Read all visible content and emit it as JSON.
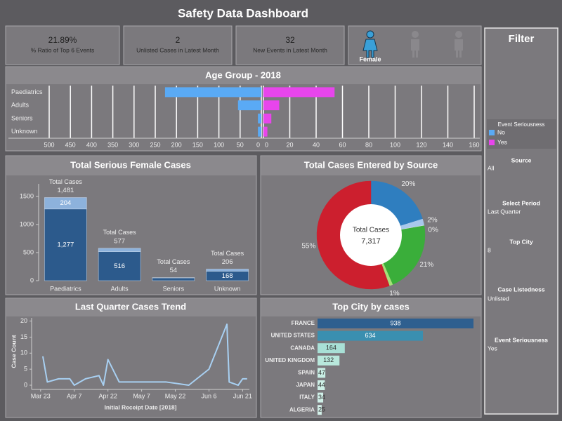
{
  "title": "Safety Data Dashboard",
  "kpis": [
    {
      "value": "21.89%",
      "label": "% Ratio of Top 6 Events"
    },
    {
      "value": "2",
      "label": "Unlisted Cases in Latest Month"
    },
    {
      "value": "32",
      "label": "New Events in Latest Month"
    }
  ],
  "gender": {
    "label": "Female"
  },
  "filter": {
    "title": "Filter",
    "items": [
      {
        "label": "Source",
        "value": "All"
      },
      {
        "label": "Select Period",
        "value": "Last Quarter"
      },
      {
        "label": "Top City",
        "value": "8"
      },
      {
        "label": "Case Listedness",
        "value": "Unlisted"
      },
      {
        "label": "Event Seriousness",
        "value": "Yes"
      }
    ]
  },
  "chart_data": [
    {
      "type": "butterfly",
      "title": "Age Group - 2018",
      "categories": [
        "Paediatrics",
        "Adults",
        "Seniors",
        "Unknown"
      ],
      "legend_title": "Event Seriousness",
      "series": [
        {
          "name": "No",
          "color": "#5aaaf5",
          "values": [
            227,
            55,
            8,
            8
          ]
        },
        {
          "name": "Yes",
          "color": "#e845ec",
          "values": [
            54,
            12,
            6,
            3
          ],
          "axis": "x2"
        }
      ],
      "xlim": [
        0,
        500
      ],
      "xticks": [
        500,
        450,
        400,
        350,
        300,
        250,
        200,
        150,
        100,
        50,
        0
      ],
      "x2lim": [
        0,
        160
      ],
      "x2ticks": [
        0,
        20,
        40,
        60,
        80,
        100,
        120,
        140,
        160
      ],
      "grid": true
    },
    {
      "type": "stacked-bar",
      "title": "Total Serious Female Cases",
      "categories": [
        "Paediatrics",
        "Adults",
        "Seniors",
        "Unknown"
      ],
      "series": [
        {
          "color": "#2c5a8c",
          "values": [
            1277,
            516,
            50,
            168
          ],
          "value_labels": [
            "1,277",
            "516",
            null,
            "168"
          ]
        },
        {
          "color": "#8db2dc",
          "values": [
            204,
            61,
            4,
            38
          ],
          "value_labels": [
            "204",
            null,
            null,
            null
          ]
        }
      ],
      "total_title": "Total Cases",
      "totals": [
        1481,
        577,
        54,
        206
      ],
      "totals_labels": [
        "1,481",
        "577",
        "54",
        "206"
      ],
      "ylim": [
        0,
        1600
      ],
      "yticks": [
        0,
        500,
        1000,
        1500
      ]
    },
    {
      "type": "donut",
      "title": "Total Cases Entered by Source",
      "values": [
        20,
        2,
        0,
        21,
        1,
        55
      ],
      "value_labels": [
        "20%",
        "2%",
        "0%",
        "21%",
        "1%",
        "55%"
      ],
      "colors": [
        "#2f7ebf",
        "#a8c8ec",
        "#e6e6e6",
        "#3aae3a",
        "#a6e07a",
        "#cc1f2e"
      ],
      "center_title": "Total Cases",
      "center_label": "7,317"
    },
    {
      "type": "line",
      "title": "Last Quarter Cases Trend",
      "xlabel": "Initial Receipt Date [2018]",
      "ylabel": "Case Count",
      "color": "#a8d0f2",
      "x": [
        "2018-03-24",
        "2018-03-26",
        "2018-03-31",
        "2018-04-05",
        "2018-04-07",
        "2018-04-12",
        "2018-04-18",
        "2018-04-20",
        "2018-04-22",
        "2018-04-27",
        "2018-05-07",
        "2018-05-18",
        "2018-05-28",
        "2018-06-06",
        "2018-06-14",
        "2018-06-15",
        "2018-06-19",
        "2018-06-21",
        "2018-06-23"
      ],
      "values": [
        9,
        1,
        2,
        2,
        0,
        2,
        3,
        0,
        8,
        1,
        1,
        1,
        0,
        5,
        19,
        1,
        0,
        2,
        2
      ],
      "xlim": [
        "2018-03-19",
        "2018-06-24"
      ],
      "xticks": [
        {
          "value": "2018-03-23",
          "label": "Mar 23"
        },
        {
          "value": "2018-04-07",
          "label": "Apr 7"
        },
        {
          "value": "2018-04-22",
          "label": "Apr 22"
        },
        {
          "value": "2018-05-07",
          "label": "May 7"
        },
        {
          "value": "2018-05-22",
          "label": "May 22"
        },
        {
          "value": "2018-06-06",
          "label": "Jun 6"
        },
        {
          "value": "2018-06-21",
          "label": "Jun 21"
        }
      ],
      "ylim": [
        0,
        21
      ],
      "yticks": [
        0,
        5,
        10,
        15,
        20
      ]
    },
    {
      "type": "hbar",
      "title": "Top City by cases",
      "categories": [
        "FRANCE",
        "UNITED STATES",
        "CANADA",
        "UNITED KINGDOM",
        "SPAIN",
        "JAPAN",
        "ITALY",
        "ALGERIA"
      ],
      "values": [
        938,
        634,
        164,
        132,
        47,
        44,
        34,
        25
      ],
      "colors": [
        "#2e5f8f",
        "#3a8fb0",
        "#a8e0d6",
        "#b8e8dc",
        "#c8eee4",
        "#cdefe6",
        "#d0f0e8",
        "#d4f1ea"
      ]
    }
  ]
}
